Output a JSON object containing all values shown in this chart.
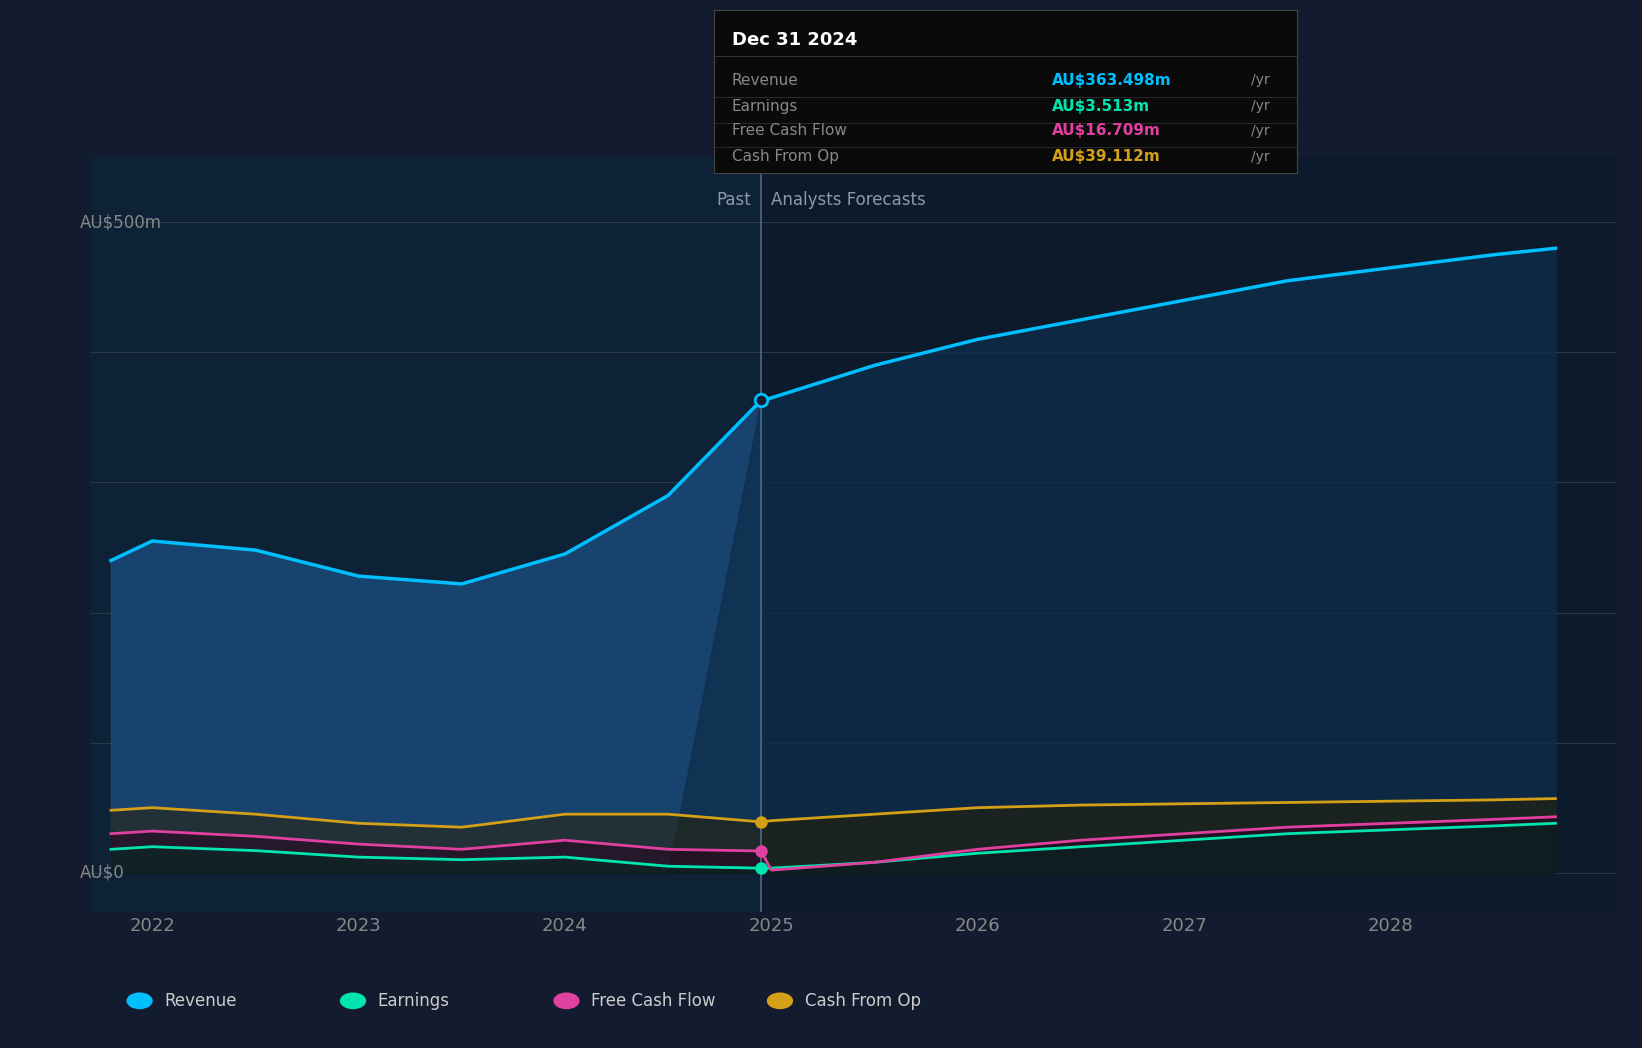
{
  "bg_color": "#131b2e",
  "plot_bg_past": "#0d2137",
  "plot_bg_forecast": "#0d1a2b",
  "grid_color": "#2a3a4a",
  "axis_label_color": "#888888",
  "y_label_500": "AU$500m",
  "y_label_0": "AU$0",
  "past_label": "Past",
  "forecast_label": "Analysts Forecasts",
  "x_ticks": [
    2022,
    2023,
    2024,
    2025,
    2026,
    2027,
    2028
  ],
  "divider_x": 2024.95,
  "revenue_color": "#00bfff",
  "earnings_color": "#00e5b0",
  "fcf_color": "#e040a0",
  "cashop_color": "#d4a017",
  "revenue": {
    "x": [
      2021.8,
      2022.0,
      2022.5,
      2023.0,
      2023.5,
      2024.0,
      2024.5,
      2024.95,
      2025.0,
      2025.5,
      2026.0,
      2026.5,
      2027.0,
      2027.5,
      2028.0,
      2028.5,
      2028.8
    ],
    "y": [
      240,
      255,
      248,
      228,
      222,
      245,
      290,
      363,
      365,
      390,
      410,
      425,
      440,
      455,
      465,
      475,
      480
    ]
  },
  "earnings": {
    "x": [
      2021.8,
      2022.0,
      2022.5,
      2023.0,
      2023.5,
      2024.0,
      2024.5,
      2024.95,
      2025.0,
      2025.5,
      2026.0,
      2026.5,
      2027.0,
      2027.5,
      2028.0,
      2028.5,
      2028.8
    ],
    "y": [
      18,
      20,
      17,
      12,
      10,
      12,
      5,
      3.5,
      3.5,
      8,
      15,
      20,
      25,
      30,
      33,
      36,
      38
    ]
  },
  "fcf": {
    "x": [
      2021.8,
      2022.0,
      2022.5,
      2023.0,
      2023.5,
      2024.0,
      2024.5,
      2024.95,
      2025.0,
      2025.5,
      2026.0,
      2026.5,
      2027.0,
      2027.5,
      2028.0,
      2028.5,
      2028.8
    ],
    "y": [
      30,
      32,
      28,
      22,
      18,
      25,
      18,
      16.7,
      2,
      8,
      18,
      25,
      30,
      35,
      38,
      41,
      43
    ]
  },
  "cashop": {
    "x": [
      2021.8,
      2022.0,
      2022.5,
      2023.0,
      2023.5,
      2024.0,
      2024.5,
      2024.95,
      2025.0,
      2025.5,
      2026.0,
      2026.5,
      2027.0,
      2027.5,
      2028.0,
      2028.5,
      2028.8
    ],
    "y": [
      48,
      50,
      45,
      38,
      35,
      45,
      45,
      39.1,
      40,
      45,
      50,
      52,
      53,
      54,
      55,
      56,
      57
    ]
  },
  "tooltip": {
    "title": "Dec 31 2024",
    "bg": "#0a0a0a",
    "border": "#444444",
    "rows": [
      {
        "label": "Revenue",
        "value": "AU$363.498m",
        "unit": "/yr",
        "color": "#00bfff"
      },
      {
        "label": "Earnings",
        "value": "AU$3.513m",
        "unit": "/yr",
        "color": "#00e5b0"
      },
      {
        "label": "Free Cash Flow",
        "value": "AU$16.709m",
        "unit": "/yr",
        "color": "#e040a0"
      },
      {
        "label": "Cash From Op",
        "value": "AU$39.112m",
        "unit": "/yr",
        "color": "#d4a017"
      }
    ]
  },
  "legend": [
    {
      "label": "Revenue",
      "color": "#00bfff"
    },
    {
      "label": "Earnings",
      "color": "#00e5b0"
    },
    {
      "label": "Free Cash Flow",
      "color": "#e040a0"
    },
    {
      "label": "Cash From Op",
      "color": "#d4a017"
    }
  ],
  "ylim": [
    -30,
    550
  ],
  "xlim": [
    2021.7,
    2029.1
  ]
}
